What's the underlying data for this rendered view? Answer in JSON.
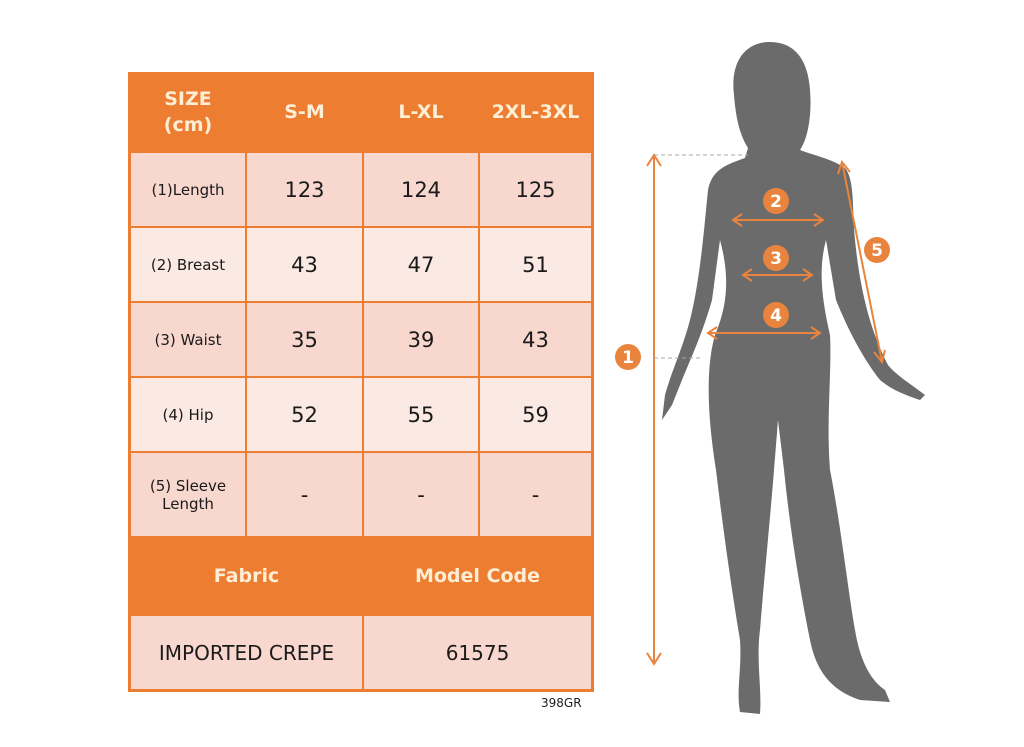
{
  "table": {
    "header": [
      "SIZE\n(cm)",
      "S-M",
      "L-XL",
      "2XL-3XL"
    ],
    "header_line1": "SIZE",
    "header_line2": "(cm)",
    "rows": [
      {
        "label": "(1)Length",
        "values": [
          "123",
          "124",
          "125"
        ]
      },
      {
        "label": "(2) Breast",
        "values": [
          "43",
          "47",
          "51"
        ]
      },
      {
        "label": "(3) Waist",
        "values": [
          "35",
          "39",
          "43"
        ]
      },
      {
        "label": "(4) Hip",
        "values": [
          "52",
          "55",
          "59"
        ]
      },
      {
        "label_line1": "(5) Sleeve",
        "label_line2": "Length",
        "values": [
          "-",
          "-",
          "-"
        ]
      }
    ],
    "fabric_header": "Fabric",
    "model_code_header": "Model Code",
    "fabric_value": "IMPORTED CREPE",
    "model_code_value": "61575"
  },
  "footer_code": "398GR",
  "figure": {
    "markers": [
      "1",
      "2",
      "3",
      "4",
      "5"
    ]
  },
  "colors": {
    "accent": "#ed7d31",
    "header_text": "#fdeed5",
    "row_dark": "#f8d8ce",
    "row_light": "#fbe9e4",
    "silhouette": "#6b6b6b"
  }
}
